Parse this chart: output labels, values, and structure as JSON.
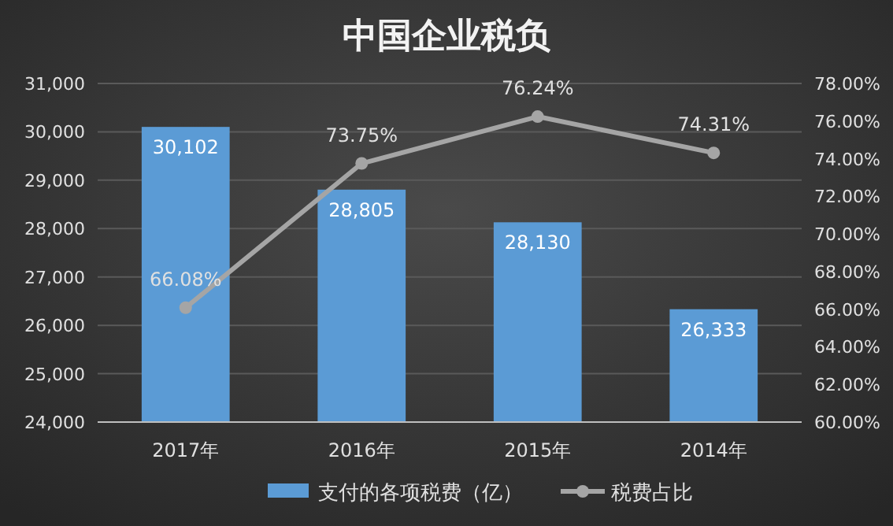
{
  "chart_data": {
    "type": "bar",
    "title": "中国企业税负",
    "categories": [
      "2017年",
      "2016年",
      "2015年",
      "2014年"
    ],
    "series": [
      {
        "name": "支付的各项税费（亿）",
        "color": "#5b9bd5",
        "values": [
          30102,
          28805,
          28130,
          26333
        ],
        "value_labels": [
          "30,102",
          "28,805",
          "28,130",
          "26,333"
        ]
      },
      {
        "name": "税费占比",
        "type": "line",
        "axis": "y2",
        "color": "#a5a5a5",
        "marker": "circle",
        "values": [
          66.08,
          73.75,
          76.24,
          74.31
        ],
        "value_labels": [
          "66.08%",
          "73.75%",
          "76.24%",
          "74.31%"
        ]
      }
    ],
    "ylim": [
      24000,
      31000
    ],
    "yticks": [
      {
        "value": 24000,
        "label": "24,000"
      },
      {
        "value": 25000,
        "label": "25,000"
      },
      {
        "value": 26000,
        "label": "26,000"
      },
      {
        "value": 27000,
        "label": "27,000"
      },
      {
        "value": 28000,
        "label": "28,000"
      },
      {
        "value": 29000,
        "label": "29,000"
      },
      {
        "value": 30000,
        "label": "30,000"
      },
      {
        "value": 31000,
        "label": "31,000"
      }
    ],
    "y2lim": [
      60,
      78
    ],
    "y2ticks": [
      {
        "value": 60,
        "label": "60.00%"
      },
      {
        "value": 62,
        "label": "62.00%"
      },
      {
        "value": 64,
        "label": "64.00%"
      },
      {
        "value": 66,
        "label": "66.00%"
      },
      {
        "value": 68,
        "label": "68.00%"
      },
      {
        "value": 70,
        "label": "70.00%"
      },
      {
        "value": 72,
        "label": "72.00%"
      },
      {
        "value": 74,
        "label": "74.00%"
      },
      {
        "value": 76,
        "label": "76.00%"
      },
      {
        "value": 78,
        "label": "78.00%"
      }
    ],
    "grid": "y",
    "legend": "bottom"
  }
}
